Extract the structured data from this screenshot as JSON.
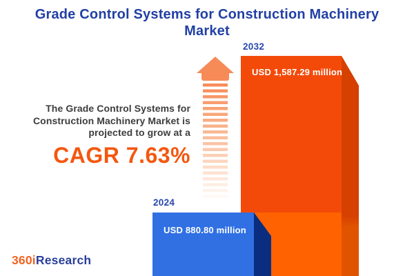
{
  "title": "Grade Control Systems for Construction Machinery Market",
  "promo": {
    "lines": [
      "The Grade Control Systems for",
      "Construction Machinery Market is",
      "projected to grow at a"
    ],
    "cagr_label": "CAGR 7.63%"
  },
  "chart_data": {
    "type": "bar",
    "categories": [
      "2024",
      "2032"
    ],
    "values": [
      880.8,
      1587.29
    ],
    "unit": "USD million",
    "value_labels": [
      "USD 880.80 million",
      "USD 1,587.29 million"
    ],
    "cagr_percent": 7.63,
    "title": "Grade Control Systems for Construction Machinery Market",
    "xlabel": "",
    "ylabel": "",
    "legend": false,
    "grid": false,
    "orientation": "vertical"
  },
  "logo": {
    "prefix": "360i",
    "suffix": "Research"
  },
  "colors": {
    "title_blue": "#2240A4",
    "year_label_blue": "#2746AE",
    "body_text": "#3D3D3D",
    "accent_orange": "#F4570F",
    "bar_2024_front": "#3070E3",
    "bar_2024_side": "#0B2D80",
    "bar_2032_front_top": "#F34A0A",
    "bar_2032_front_bottom": "#FF6200",
    "bar_2032_side_top": "#D64000",
    "bar_2032_side_bottom": "#E05400",
    "arrow_orange": "#F78B58",
    "logo_orange": "#F26322",
    "logo_blue": "#2A3F9B"
  }
}
